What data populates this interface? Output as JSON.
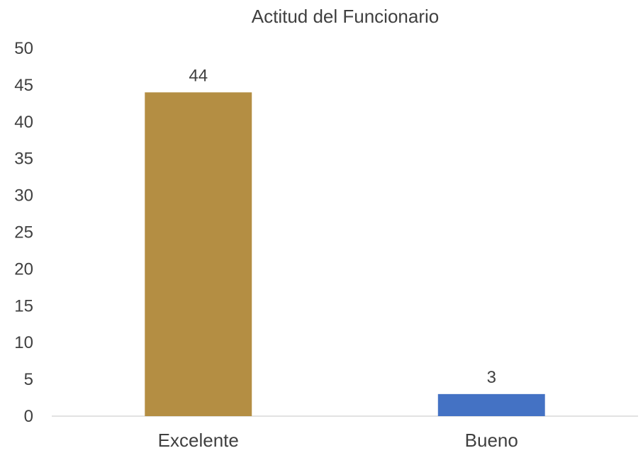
{
  "chart_data": {
    "type": "bar",
    "title": "Actitud del Funcionario",
    "categories": [
      "Excelente",
      "Bueno"
    ],
    "values": [
      44,
      3
    ],
    "colors": [
      "#B48E43",
      "#4472C4"
    ],
    "xlabel": "",
    "ylabel": "",
    "ylim": [
      0,
      50
    ],
    "y_tick_step": 5,
    "y_ticks": [
      "0",
      "5",
      "10",
      "15",
      "20",
      "25",
      "30",
      "35",
      "40",
      "45",
      "50"
    ],
    "data_labels": [
      "44",
      "3"
    ],
    "grid": false,
    "legend": "none",
    "axis_color": "#D9D9D9"
  }
}
